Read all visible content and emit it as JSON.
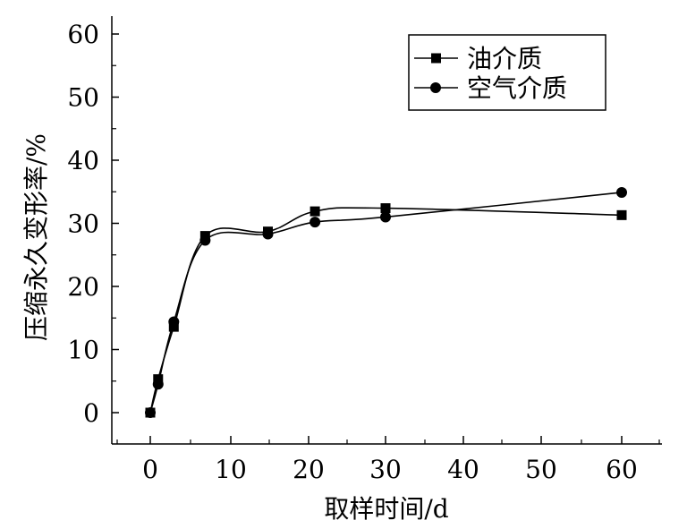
{
  "chart_data": {
    "type": "line",
    "xlabel": "取样时间/d",
    "ylabel": "压缩永久变形率/%",
    "x_ticks": [
      "0",
      "10",
      "20",
      "30",
      "40",
      "50",
      "60"
    ],
    "y_ticks": [
      "0",
      "10",
      "20",
      "30",
      "40",
      "50",
      "60"
    ],
    "ylim": [
      0,
      60
    ],
    "grid": false,
    "legend": "top-right",
    "series": [
      {
        "name": "油介质",
        "marker": "square",
        "color": "#000000",
        "x": [
          "0",
          "1",
          "3",
          "7",
          "15",
          "21",
          "30",
          "60"
        ],
        "y": [
          0,
          5.3,
          13.6,
          28.0,
          28.7,
          31.9,
          32.4,
          31.3
        ]
      },
      {
        "name": "空气介质",
        "marker": "circle",
        "color": "#000000",
        "x": [
          "0",
          "1",
          "3",
          "7",
          "15",
          "21",
          "30",
          "60"
        ],
        "y": [
          0,
          4.5,
          14.4,
          27.3,
          28.3,
          30.2,
          31.0,
          34.9
        ]
      }
    ]
  }
}
